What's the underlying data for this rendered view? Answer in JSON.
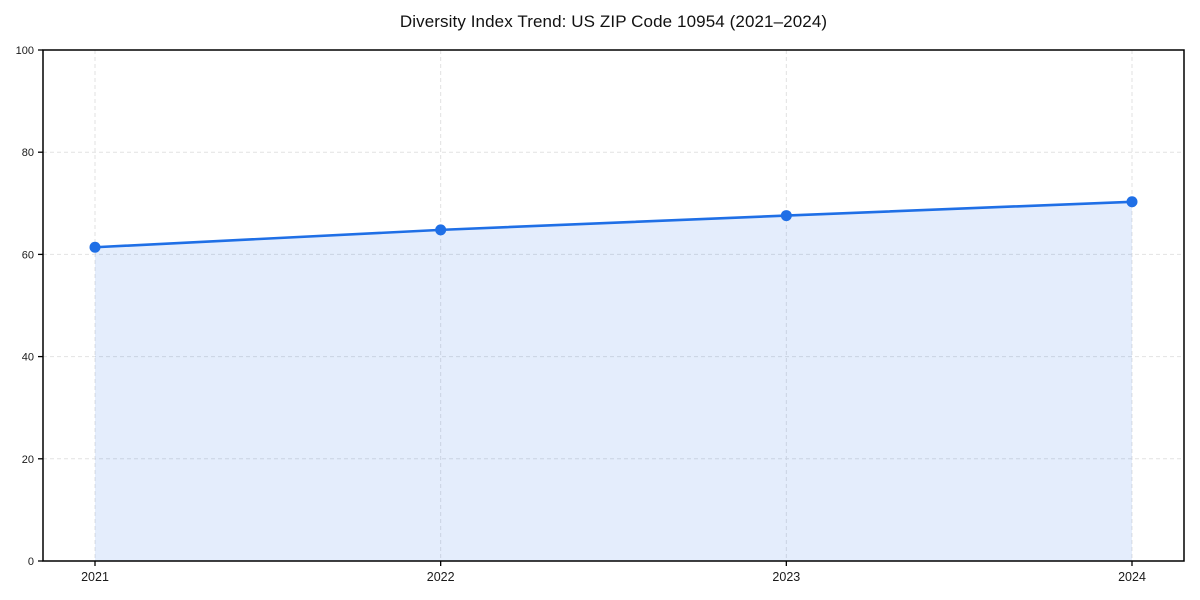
{
  "chart_data": {
    "type": "area",
    "title": "Diversity Index Trend: US ZIP Code 10954 (2021–2024)",
    "categories": [
      "2021",
      "2022",
      "2023",
      "2024"
    ],
    "series": [
      {
        "name": "Diversity Index",
        "values": [
          61.4,
          64.8,
          67.6,
          70.3
        ]
      }
    ],
    "xlabel": "",
    "ylabel": "",
    "ylim": [
      0,
      100
    ],
    "yticks": [
      0,
      20,
      40,
      60,
      80,
      100
    ],
    "grid": "dashed, both axes",
    "legend": "none",
    "line_color": "#1f6fe6",
    "marker_color": "#1f6fe6",
    "fill_color": "rgba(31, 111, 230, 0.12)",
    "grid_color": "#e2e2e2",
    "spine_color": "#000000",
    "background_color": "#ffffff"
  }
}
